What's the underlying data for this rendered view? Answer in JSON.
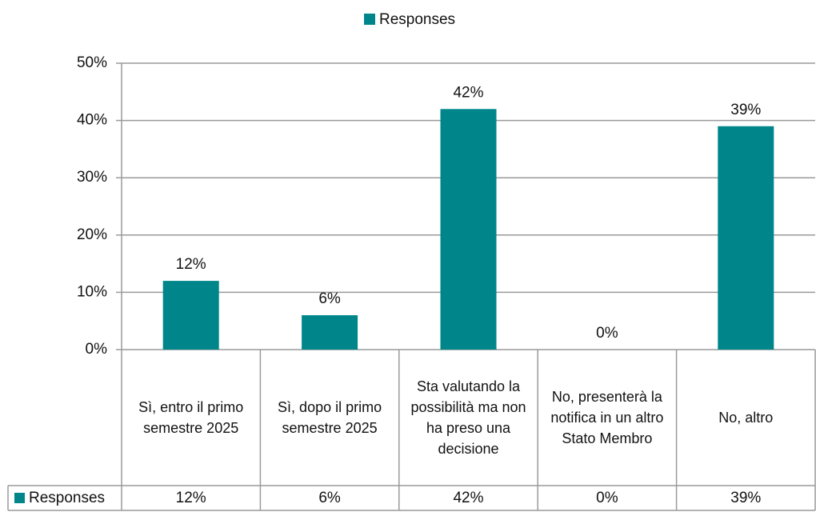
{
  "chart_data": {
    "type": "bar",
    "legend_title": "Responses",
    "categories": [
      "Sì, entro il primo semestre 2025",
      "Sì, dopo il primo semestre 2025",
      "Sta valutando la possibilità ma non ha preso una decisione",
      "No, presenterà la notifica in un altro Stato Membro",
      "No, altro"
    ],
    "series": [
      {
        "name": "Responses",
        "color": "#00868a",
        "values": [
          12,
          6,
          42,
          0,
          39
        ],
        "value_labels": [
          "12%",
          "6%",
          "42%",
          "0%",
          "39%"
        ]
      }
    ],
    "ylim": [
      0,
      50
    ],
    "yticks": [
      {
        "value": 0,
        "label": "0%"
      },
      {
        "value": 10,
        "label": "10%"
      },
      {
        "value": 20,
        "label": "20%"
      },
      {
        "value": 30,
        "label": "30%"
      },
      {
        "value": 40,
        "label": "40%"
      },
      {
        "value": 50,
        "label": "50%"
      }
    ],
    "grid": true,
    "legend": "top",
    "data_table": true
  }
}
